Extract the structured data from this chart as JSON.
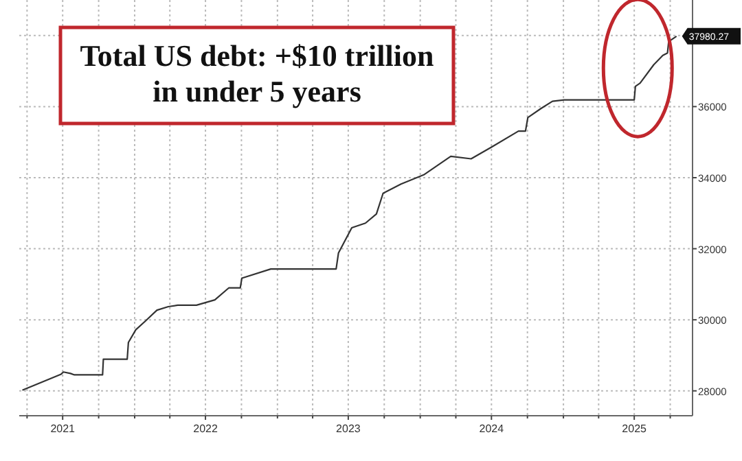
{
  "chart_data": {
    "type": "line",
    "title": "Total US debt: +$10 trillion in under 5 years",
    "x": [
      "2021-03-20",
      "2021-06-27",
      "2021-07-03",
      "2021-07-21",
      "2021-07-31",
      "2021-10-11",
      "2021-10-13",
      "2021-12-13",
      "2021-12-16",
      "2022-01-04",
      "2022-01-28",
      "2022-02-27",
      "2022-03-28",
      "2022-04-21",
      "2022-06-08",
      "2022-07-25",
      "2022-08-30",
      "2022-09-28",
      "2022-10-02",
      "2022-12-15",
      "2023-05-31",
      "2023-06-06",
      "2023-07-10",
      "2023-08-14",
      "2023-09-11",
      "2023-09-28",
      "2023-11-13",
      "2024-01-10",
      "2024-03-19",
      "2024-05-10",
      "2024-07-01",
      "2024-09-08",
      "2024-09-26",
      "2024-10-02",
      "2024-11-05",
      "2024-12-04",
      "2025-01-03",
      "2025-07-01",
      "2025-07-04",
      "2025-07-16",
      "2025-08-20",
      "2025-09-12",
      "2025-09-24",
      "2025-09-27",
      "2025-10-17"
    ],
    "series": [
      {
        "color": "#333333",
        "values": [
          28020,
          28470,
          28530,
          28490,
          28450,
          28450,
          28890,
          28890,
          29360,
          29720,
          29960,
          30270,
          30370,
          30410,
          30410,
          30560,
          30900,
          30900,
          31170,
          31430,
          31430,
          31880,
          32590,
          32720,
          32980,
          33560,
          33820,
          34080,
          34600,
          34530,
          34860,
          35310,
          35310,
          35690,
          35950,
          36150,
          36190,
          36190,
          36570,
          36660,
          37180,
          37440,
          37510,
          37830,
          37980
        ]
      }
    ],
    "xlim": [
      "2021-03-12",
      "2025-11-27"
    ],
    "xticks": [
      {
        "value": "2021-04-01",
        "label": null
      },
      {
        "value": "2021-07-01",
        "label": "2021"
      },
      {
        "value": "2021-10-01",
        "label": null
      },
      {
        "value": "2022-01-01",
        "label": null
      },
      {
        "value": "2022-04-01",
        "label": null
      },
      {
        "value": "2022-07-01",
        "label": "2022"
      },
      {
        "value": "2022-10-01",
        "label": null
      },
      {
        "value": "2023-01-01",
        "label": null
      },
      {
        "value": "2023-04-01",
        "label": null
      },
      {
        "value": "2023-07-01",
        "label": "2023"
      },
      {
        "value": "2023-10-01",
        "label": null
      },
      {
        "value": "2024-01-01",
        "label": null
      },
      {
        "value": "2024-04-01",
        "label": null
      },
      {
        "value": "2024-07-01",
        "label": "2024"
      },
      {
        "value": "2024-10-01",
        "label": null
      },
      {
        "value": "2025-01-01",
        "label": null
      },
      {
        "value": "2025-04-01",
        "label": null
      },
      {
        "value": "2025-07-01",
        "label": "2025"
      },
      {
        "value": "2025-10-01",
        "label": null
      }
    ],
    "ylim": [
      27300,
      39000
    ],
    "yticks": [
      28000,
      30000,
      32000,
      34000,
      36000,
      {
        "value": 38000,
        "label": null
      }
    ],
    "grid": true,
    "annotations": [
      {
        "text": "37980.27",
        "x": "2025-10-17",
        "y": 37980.27
      }
    ]
  }
}
